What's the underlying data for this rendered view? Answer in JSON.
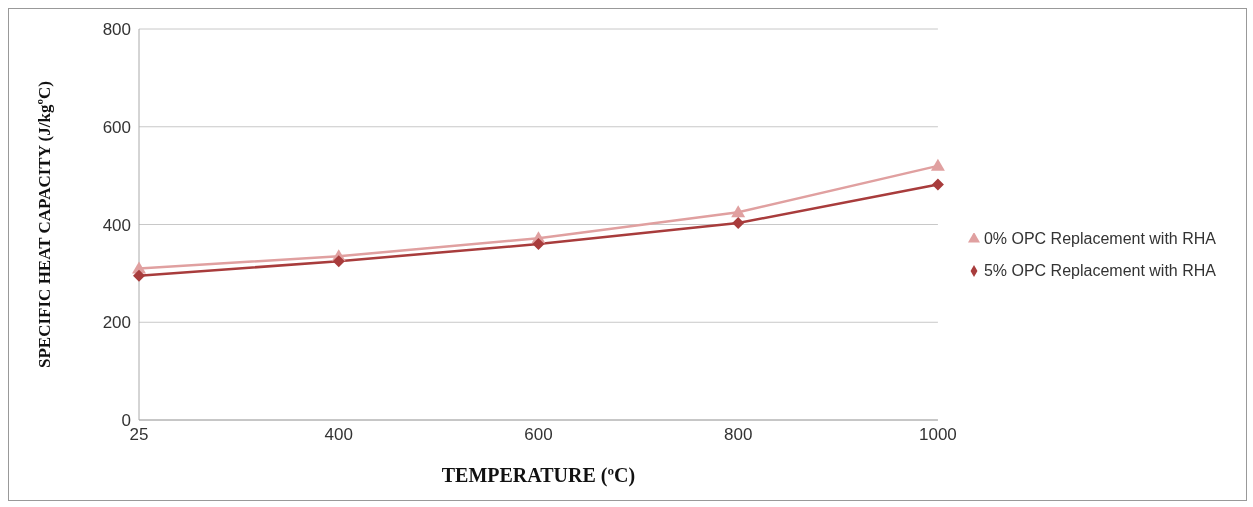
{
  "chart_data": {
    "type": "line",
    "xlabel": "TEMPERATURE (ºC)",
    "ylabel": "SPECIFIC HEAT CAPACITY  (J/kgºC)",
    "categories": [
      "25",
      "400",
      "600",
      "800",
      "1000"
    ],
    "series": [
      {
        "name": "0% OPC Replacement with RHA",
        "color": "#e0a0a0",
        "marker": "triangle",
        "values": [
          310,
          335,
          372,
          425,
          520
        ]
      },
      {
        "name": "5% OPC Replacement with RHA",
        "color": "#a83c3c",
        "marker": "diamond",
        "values": [
          295,
          325,
          360,
          403,
          482
        ]
      }
    ],
    "ylim": [
      0,
      800
    ],
    "yticks": [
      0,
      200,
      400,
      600,
      800
    ],
    "grid": "y",
    "legend": "right",
    "line_style": "solid"
  }
}
